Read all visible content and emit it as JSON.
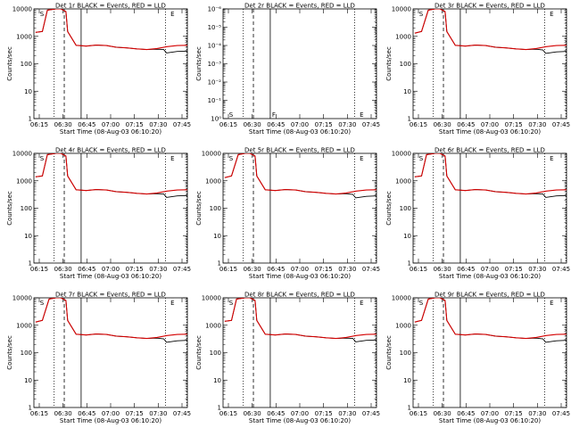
{
  "chart_data": {
    "type": "line",
    "panel_layout": "3x3 grid",
    "y_scale": "log",
    "x_tick_labels": [
      "06:15",
      "06:30",
      "06:45",
      "07:00",
      "07:15",
      "07:30",
      "07:45"
    ],
    "x_range_minutes": [
      6.5,
      52
    ],
    "legend": "none",
    "grid": false,
    "colors": {
      "events": "#000000",
      "lld": "#d40000"
    },
    "panels": [
      {
        "title": "Det 1r BLACK = Events, RED = LLD",
        "xlabel": "Start Time (08-Aug-03 06:10:20)",
        "ylabel": "Counts/sec",
        "y_tick_labels": [
          "10000",
          "1000",
          "100",
          "10",
          "1"
        ],
        "ylim": [
          1,
          10000
        ],
        "marker_labels": [
          "S",
          "E"
        ],
        "has_data": true,
        "series": [
          {
            "name": "Events",
            "x": [
              7,
              9,
              10.5,
              13,
              14.5,
              16,
              16.5,
              19,
              22,
              25,
              28,
              31,
              34,
              37,
              40,
              43,
              45,
              45.8,
              46,
              49,
              52
            ],
            "y": [
              1400,
              1500,
              9000,
              10000,
              10000,
              8000,
              1500,
              470,
              440,
              480,
              460,
              400,
              380,
              350,
              330,
              340,
              330,
              250,
              250,
              280,
              290
            ]
          },
          {
            "name": "LLD",
            "x": [
              7,
              9,
              10.5,
              13,
              14.5,
              16,
              16.5,
              19,
              22,
              25,
              28,
              31,
              34,
              37,
              40,
              43,
              46,
              49,
              52
            ],
            "y": [
              1400,
              1500,
              9000,
              10000,
              10000,
              8000,
              1500,
              470,
              440,
              480,
              460,
              400,
              380,
              350,
              330,
              360,
              420,
              460,
              470
            ]
          }
        ]
      },
      {
        "title": "Det 2r BLACK = Events, RED = LLD",
        "xlabel": "Start Time (08-Aug-03 06:10:20)",
        "ylabel": "Counts/sec",
        "y_tick_labels": [
          "10⁻⁶",
          "10⁻⁵",
          "10⁻⁴",
          "10⁻³",
          "10⁻²",
          "10⁻¹",
          "10⁰"
        ],
        "ylim": [
          1e-06,
          1
        ],
        "marker_labels": [
          "S",
          "F",
          "E"
        ],
        "has_data": false,
        "series": []
      },
      {
        "title": "Det 3r BLACK = Events, RED = LLD",
        "xlabel": "Start Time (08-Aug-03 06:10:20)",
        "ylabel": "Counts/sec",
        "y_tick_labels": [
          "10000",
          "1000",
          "100",
          "10",
          "1"
        ],
        "ylim": [
          1,
          10000
        ],
        "marker_labels": [
          "S",
          "E"
        ],
        "has_data": true,
        "series": [
          {
            "name": "Events",
            "x": [
              7,
              9,
              11,
              13,
              14.5,
              16,
              16.5,
              19,
              22,
              25,
              28,
              31,
              34,
              37,
              40,
              43,
              45,
              45.8,
              46,
              49,
              52
            ],
            "y": [
              1300,
              1500,
              9000,
              10000,
              10000,
              8000,
              1500,
              470,
              440,
              480,
              460,
              400,
              380,
              350,
              330,
              340,
              320,
              240,
              240,
              270,
              280
            ]
          },
          {
            "name": "LLD",
            "x": [
              7,
              9,
              11,
              13,
              14.5,
              16,
              16.5,
              19,
              22,
              25,
              28,
              31,
              34,
              37,
              40,
              43,
              46,
              49,
              52
            ],
            "y": [
              1300,
              1500,
              9000,
              10000,
              10000,
              8000,
              1500,
              470,
              440,
              480,
              460,
              400,
              380,
              350,
              330,
              360,
              420,
              460,
              470
            ]
          }
        ]
      },
      {
        "title": "Det 4r BLACK = Events, RED = LLD",
        "xlabel": "Start Time (08-Aug-03 06:10:20)",
        "ylabel": "Counts/sec",
        "y_tick_labels": [
          "10000",
          "1000",
          "100",
          "10",
          "1"
        ],
        "ylim": [
          1,
          10000
        ],
        "marker_labels": [
          "S",
          "E"
        ],
        "has_data": true,
        "series": [
          {
            "name": "Events",
            "x": [
              7,
              9,
              10.5,
              13,
              14.5,
              16,
              16.5,
              19,
              22,
              25,
              28,
              31,
              34,
              37,
              40,
              43,
              45,
              45.8,
              46,
              49,
              52
            ],
            "y": [
              1400,
              1500,
              9000,
              10000,
              10000,
              8000,
              1500,
              470,
              440,
              480,
              460,
              400,
              380,
              350,
              330,
              340,
              330,
              250,
              250,
              280,
              290
            ]
          },
          {
            "name": "LLD",
            "x": [
              7,
              9,
              10.5,
              13,
              14.5,
              16,
              16.5,
              19,
              22,
              25,
              28,
              31,
              34,
              37,
              40,
              43,
              46,
              49,
              52
            ],
            "y": [
              1400,
              1500,
              9000,
              10000,
              10000,
              8000,
              1500,
              470,
              440,
              480,
              460,
              400,
              380,
              350,
              330,
              360,
              420,
              460,
              470
            ]
          }
        ]
      },
      {
        "title": "Det 5r BLACK = Events, RED = LLD",
        "xlabel": "Start Time (08-Aug-03 06:10:20)",
        "ylabel": "Counts/sec",
        "y_tick_labels": [
          "10000",
          "1000",
          "100",
          "10",
          "1"
        ],
        "ylim": [
          1,
          10000
        ],
        "marker_labels": [
          "S",
          "E"
        ],
        "has_data": true,
        "series": [
          {
            "name": "Events",
            "x": [
              7,
              9,
              11,
              13,
              14.5,
              16,
              16.5,
              19,
              22,
              25,
              28,
              31,
              34,
              37,
              40,
              43,
              45,
              45.8,
              46,
              49,
              52
            ],
            "y": [
              1300,
              1500,
              9000,
              10000,
              10000,
              8000,
              1500,
              470,
              440,
              480,
              460,
              400,
              380,
              350,
              330,
              340,
              320,
              240,
              240,
              270,
              280
            ]
          },
          {
            "name": "LLD",
            "x": [
              7,
              9,
              11,
              13,
              14.5,
              16,
              16.5,
              19,
              22,
              25,
              28,
              31,
              34,
              37,
              40,
              43,
              46,
              49,
              52
            ],
            "y": [
              1300,
              1500,
              9000,
              10000,
              10000,
              8000,
              1500,
              470,
              440,
              480,
              460,
              400,
              380,
              350,
              330,
              360,
              420,
              460,
              470
            ]
          }
        ]
      },
      {
        "title": "Det 6r BLACK = Events, RED = LLD",
        "xlabel": "Start Time (08-Aug-03 06:10:20)",
        "ylabel": "Counts/sec",
        "y_tick_labels": [
          "10000",
          "1000",
          "100",
          "10",
          "1"
        ],
        "ylim": [
          1,
          10000
        ],
        "marker_labels": [
          "S",
          "E"
        ],
        "has_data": true,
        "series": [
          {
            "name": "Events",
            "x": [
              7,
              9,
              10.5,
              13,
              14.5,
              16,
              16.5,
              19,
              22,
              25,
              28,
              31,
              34,
              37,
              40,
              43,
              45,
              45.8,
              46,
              49,
              52
            ],
            "y": [
              1400,
              1500,
              9000,
              10000,
              10000,
              8000,
              1500,
              470,
              440,
              480,
              460,
              400,
              380,
              350,
              330,
              340,
              330,
              250,
              250,
              280,
              290
            ]
          },
          {
            "name": "LLD",
            "x": [
              7,
              9,
              10.5,
              13,
              14.5,
              16,
              16.5,
              19,
              22,
              25,
              28,
              31,
              34,
              37,
              40,
              43,
              46,
              49,
              52
            ],
            "y": [
              1400,
              1500,
              9000,
              10000,
              10000,
              8000,
              1500,
              470,
              440,
              480,
              460,
              400,
              380,
              350,
              330,
              360,
              420,
              460,
              470
            ]
          }
        ]
      },
      {
        "title": "Det 7r BLACK = Events, RED = LLD",
        "xlabel": "Start Time (08-Aug-03 06:10:20)",
        "ylabel": "Counts/sec",
        "y_tick_labels": [
          "10000",
          "1000",
          "100",
          "10",
          "1"
        ],
        "ylim": [
          1,
          10000
        ],
        "marker_labels": [
          "S",
          "E"
        ],
        "has_data": true,
        "series": [
          {
            "name": "Events",
            "x": [
              7,
              9,
              11,
              13,
              14.5,
              16,
              16.5,
              19,
              22,
              25,
              28,
              31,
              34,
              37,
              40,
              43,
              45,
              45.8,
              46,
              49,
              52
            ],
            "y": [
              1300,
              1500,
              9000,
              10000,
              10000,
              8000,
              1500,
              470,
              440,
              480,
              460,
              400,
              380,
              350,
              330,
              340,
              320,
              240,
              240,
              270,
              280
            ]
          },
          {
            "name": "LLD",
            "x": [
              7,
              9,
              11,
              13,
              14.5,
              16,
              16.5,
              19,
              22,
              25,
              28,
              31,
              34,
              37,
              40,
              43,
              46,
              49,
              52
            ],
            "y": [
              1300,
              1500,
              9000,
              10000,
              10000,
              8000,
              1500,
              470,
              440,
              480,
              460,
              400,
              380,
              350,
              330,
              360,
              420,
              460,
              470
            ]
          }
        ]
      },
      {
        "title": "Det 8r BLACK = Events, RED = LLD",
        "xlabel": "Start Time (08-Aug-03 06:10:20)",
        "ylabel": "Counts/sec",
        "y_tick_labels": [
          "10000",
          "1000",
          "100",
          "10",
          "1"
        ],
        "ylim": [
          1,
          10000
        ],
        "marker_labels": [
          "S",
          "E"
        ],
        "has_data": true,
        "series": [
          {
            "name": "Events",
            "x": [
              7,
              9,
              10.5,
              13,
              14.5,
              16,
              16.5,
              19,
              22,
              25,
              28,
              31,
              34,
              37,
              40,
              43,
              45,
              45.8,
              46,
              49,
              52
            ],
            "y": [
              1400,
              1500,
              9000,
              10000,
              10000,
              8000,
              1500,
              470,
              440,
              480,
              460,
              400,
              380,
              350,
              330,
              340,
              330,
              250,
              250,
              280,
              290
            ]
          },
          {
            "name": "LLD",
            "x": [
              7,
              9,
              10.5,
              13,
              14.5,
              16,
              16.5,
              19,
              22,
              25,
              28,
              31,
              34,
              37,
              40,
              43,
              46,
              49,
              52
            ],
            "y": [
              1400,
              1500,
              9000,
              10000,
              10000,
              8000,
              1500,
              470,
              440,
              480,
              460,
              400,
              380,
              350,
              330,
              360,
              420,
              460,
              470
            ]
          }
        ]
      },
      {
        "title": "Det 9r BLACK = Events, RED = LLD",
        "xlabel": "Start Time (08-Aug-03 06:10:20)",
        "ylabel": "Counts/sec",
        "y_tick_labels": [
          "10000",
          "1000",
          "100",
          "10",
          "1"
        ],
        "ylim": [
          1,
          10000
        ],
        "marker_labels": [
          "S",
          "E"
        ],
        "has_data": true,
        "series": [
          {
            "name": "Events",
            "x": [
              7,
              9,
              11,
              13,
              14.5,
              16,
              16.5,
              19,
              22,
              25,
              28,
              31,
              34,
              37,
              40,
              43,
              45,
              45.8,
              46,
              49,
              52
            ],
            "y": [
              1300,
              1500,
              9000,
              10000,
              10000,
              8000,
              1500,
              470,
              440,
              480,
              460,
              400,
              380,
              350,
              330,
              340,
              320,
              240,
              240,
              270,
              280
            ]
          },
          {
            "name": "LLD",
            "x": [
              7,
              9,
              11,
              13,
              14.5,
              16,
              16.5,
              19,
              22,
              25,
              28,
              31,
              34,
              37,
              40,
              43,
              46,
              49,
              52
            ],
            "y": [
              1300,
              1500,
              9000,
              10000,
              10000,
              8000,
              1500,
              470,
              440,
              480,
              460,
              400,
              380,
              350,
              330,
              360,
              420,
              460,
              470
            ]
          }
        ]
      }
    ],
    "vertical_markers": [
      {
        "x": 12.5,
        "style": "dotted"
      },
      {
        "x": 15.5,
        "style": "dashed"
      },
      {
        "x": 20.5,
        "style": "solid"
      },
      {
        "x": 45.5,
        "style": "dotted"
      },
      {
        "x": 51.8,
        "style": "dotted"
      }
    ]
  }
}
